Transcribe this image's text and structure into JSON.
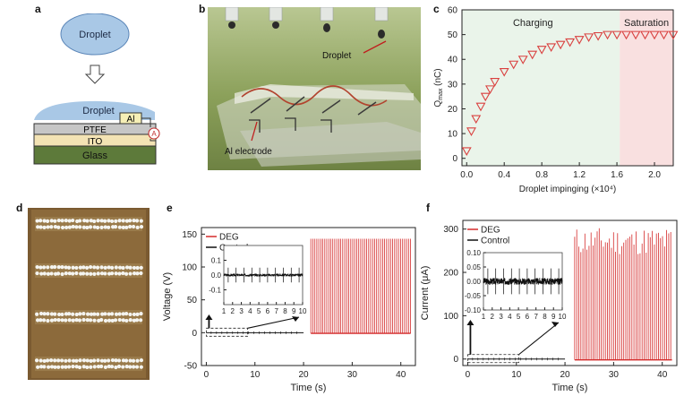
{
  "panels": {
    "a": {
      "letter": "a",
      "droplet_label": "Droplet",
      "layer_droplet": "Droplet",
      "layer_al": "Al",
      "layer_ptfe": "PTFE",
      "layer_ito": "ITO",
      "layer_glass": "Glass",
      "meter_label": "A"
    },
    "b": {
      "letter": "b",
      "droplet_label": "Droplet",
      "electrode_label": "Al electrode"
    },
    "c": {
      "letter": "c"
    },
    "d": {
      "letter": "d"
    },
    "e": {
      "letter": "e"
    },
    "f": {
      "letter": "f"
    }
  },
  "chart_data": [
    {
      "id": "c",
      "type": "scatter",
      "xlabel": "Droplet impinging (×10⁴)",
      "ylabel": "Q_max (nC)",
      "ylabel_main": "Q",
      "ylabel_sub": "max",
      "ylabel_unit": " (nC)",
      "xlim": [
        -0.05,
        2.2
      ],
      "ylim": [
        -3,
        60
      ],
      "xticks": [
        0.0,
        0.4,
        0.8,
        1.2,
        1.6,
        2.0
      ],
      "xtick_labels": [
        "0.0",
        "0.4",
        "0.8",
        "1.2",
        "1.6",
        "2.0"
      ],
      "yticks": [
        0,
        10,
        20,
        30,
        40,
        50,
        60
      ],
      "region_charging_label": "Charging",
      "region_saturation_label": "Saturation",
      "region_boundary": 1.63,
      "color": "#d9403f",
      "x": [
        0.0,
        0.05,
        0.1,
        0.15,
        0.2,
        0.25,
        0.3,
        0.4,
        0.5,
        0.6,
        0.7,
        0.8,
        0.9,
        1.0,
        1.1,
        1.2,
        1.3,
        1.4,
        1.5,
        1.6,
        1.7,
        1.8,
        1.9,
        2.0,
        2.1,
        2.2
      ],
      "y": [
        3,
        11,
        16,
        21,
        25,
        28,
        31,
        35,
        38,
        40,
        42,
        44,
        45,
        46,
        47,
        48,
        49,
        49.5,
        50,
        50,
        50,
        50,
        50,
        50,
        50,
        50
      ]
    },
    {
      "id": "e",
      "type": "line",
      "xlabel": "Time (s)",
      "ylabel": "Voltage (V)",
      "xlim": [
        -1,
        43
      ],
      "ylim": [
        -50,
        160
      ],
      "xticks": [
        0,
        10,
        20,
        30,
        40
      ],
      "yticks": [
        -50,
        0,
        50,
        100,
        150
      ],
      "series": [
        {
          "name": "DEG",
          "color": "#d42a2a",
          "start": 21.5,
          "end": 42,
          "period": 0.41,
          "peak": 143,
          "baseline": -1
        },
        {
          "name": "Control",
          "color": "#111111",
          "start": 0,
          "end": 20
        }
      ],
      "inset": {
        "xlim": [
          1,
          10
        ],
        "ylim": [
          -0.2,
          0.2
        ],
        "xticks": [
          1,
          2,
          3,
          4,
          5,
          6,
          7,
          8,
          9,
          10
        ],
        "yticks": [
          -0.1,
          0.0,
          0.1
        ],
        "ytick_labels": [
          "-0.1",
          "0.0",
          "0.1"
        ],
        "noise": 0.01,
        "spike_amp": 0.05
      }
    },
    {
      "id": "f",
      "type": "line",
      "xlabel": "Time (s)",
      "ylabel": "Current (μA)",
      "xlim": [
        -1,
        43
      ],
      "ylim": [
        -15,
        320
      ],
      "xticks": [
        0,
        10,
        20,
        30,
        40
      ],
      "yticks": [
        0,
        100,
        200,
        300
      ],
      "series": [
        {
          "name": "DEG",
          "color": "#d42a2a",
          "start": 22,
          "end": 42,
          "period": 0.42,
          "peak_min": 240,
          "peak_max": 305,
          "baseline": -2
        },
        {
          "name": "Control",
          "color": "#111111",
          "start": 0,
          "end": 20
        }
      ],
      "inset": {
        "xlim": [
          1,
          10
        ],
        "ylim": [
          -0.1,
          0.1
        ],
        "xticks": [
          1,
          2,
          3,
          4,
          5,
          6,
          7,
          8,
          9,
          10
        ],
        "yticks": [
          -0.1,
          -0.05,
          0.0,
          0.05,
          0.1
        ],
        "ytick_labels": [
          "-0.10",
          "-0.05",
          "0.00",
          "0.05",
          "0.10"
        ],
        "noise": 0.012,
        "spike_amp": 0.045
      }
    }
  ]
}
